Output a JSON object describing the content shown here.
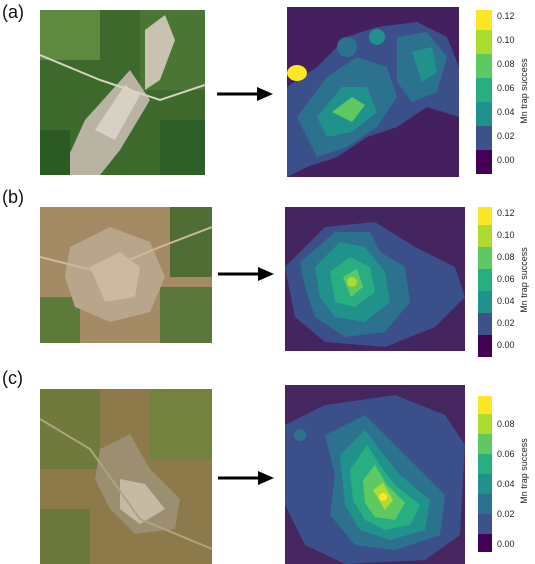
{
  "panels": [
    {
      "label": "(a)",
      "colorbar": {
        "title": "Mn trap success",
        "ticks": [
          "0.12",
          "0.10",
          "0.08",
          "0.06",
          "0.04",
          "0.02",
          "0.00"
        ]
      }
    },
    {
      "label": "(b)",
      "colorbar": {
        "title": "Mn trap success",
        "ticks": [
          "0.12",
          "0.10",
          "0.08",
          "0.06",
          "0.04",
          "0.02",
          "0.00"
        ]
      }
    },
    {
      "label": "(c)",
      "colorbar": {
        "title": "Mn trap success",
        "ticks": [
          "0.08",
          "0.06",
          "0.04",
          "0.02",
          "0.00"
        ]
      }
    }
  ],
  "colors": {
    "viridis": [
      "#440154",
      "#472d7b",
      "#3b528b",
      "#2c728e",
      "#21918c",
      "#28ae80",
      "#5ec962",
      "#addc30",
      "#fde725"
    ],
    "background": "#ffffff"
  }
}
